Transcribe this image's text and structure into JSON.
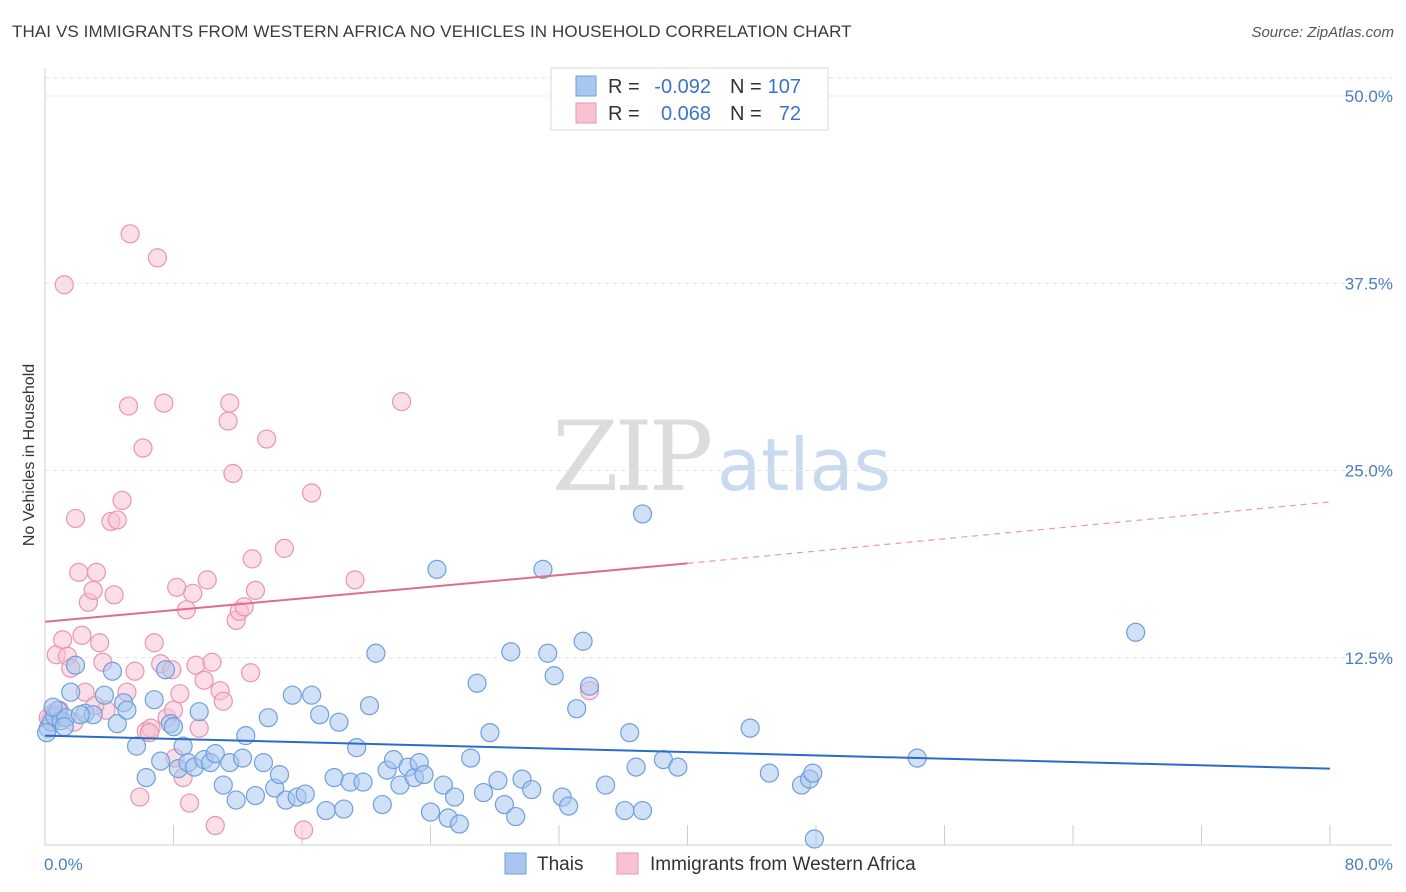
{
  "header": {
    "title": "THAI VS IMMIGRANTS FROM WESTERN AFRICA NO VEHICLES IN HOUSEHOLD CORRELATION CHART",
    "source": "Source: ZipAtlas.com"
  },
  "watermark": {
    "zip": "ZIP",
    "atlas": "atlas"
  },
  "legend": {
    "r_label": "R =",
    "n_label": "N =",
    "entries": [
      {
        "r": "-0.092",
        "n": "107",
        "color": "#a8c4ec"
      },
      {
        "r": "0.068",
        "n": "72",
        "color": "#f5b8cb"
      }
    ]
  },
  "colors": {
    "thais_fill": "#a9c6ef",
    "thais_stroke": "#6f9fdc",
    "thais_line": "#2a6dc9",
    "waf_fill": "#f7c3d3",
    "waf_stroke": "#e995b0",
    "waf_line": "#e06b95",
    "grid": "#e2e2e2",
    "tick_text": "#4a7cc4"
  },
  "chart_data": {
    "type": "scatter",
    "title": "THAI VS IMMIGRANTS FROM WESTERN AFRICA NO VEHICLES IN HOUSEHOLD CORRELATION CHART",
    "xlabel": "",
    "ylabel": "No Vehicles in Household",
    "xlim": [
      0,
      80
    ],
    "ylim": [
      0,
      50
    ],
    "x_tick_labels": [
      "0.0%",
      "80.0%"
    ],
    "y_ticks": [
      12.5,
      25.0,
      37.5,
      50.0
    ],
    "y_tick_labels": [
      "12.5%",
      "25.0%",
      "37.5%",
      "50.0%"
    ],
    "grid": "horizontal dashed",
    "legend_position": "top-center",
    "series": [
      {
        "name": "Thais",
        "trend": {
          "x": [
            0,
            80
          ],
          "y": [
            7.3,
            5.1
          ]
        },
        "points": [
          [
            0.2,
            7.8
          ],
          [
            0.4,
            8.2
          ],
          [
            0.6,
            8.6
          ],
          [
            0.8,
            9.0
          ],
          [
            1.0,
            8.3
          ],
          [
            1.3,
            8.5
          ],
          [
            1.6,
            10.2
          ],
          [
            1.9,
            12.0
          ],
          [
            2.5,
            8.8
          ],
          [
            3.0,
            8.7
          ],
          [
            3.7,
            10.0
          ],
          [
            4.2,
            11.6
          ],
          [
            4.5,
            8.1
          ],
          [
            4.9,
            9.5
          ],
          [
            5.1,
            9.0
          ],
          [
            5.7,
            6.6
          ],
          [
            6.3,
            4.5
          ],
          [
            6.8,
            9.7
          ],
          [
            7.2,
            5.6
          ],
          [
            7.5,
            11.7
          ],
          [
            7.8,
            8.1
          ],
          [
            8.0,
            7.9
          ],
          [
            8.3,
            5.1
          ],
          [
            8.6,
            6.6
          ],
          [
            8.9,
            5.5
          ],
          [
            9.3,
            5.2
          ],
          [
            9.6,
            8.9
          ],
          [
            9.9,
            5.7
          ],
          [
            10.3,
            5.5
          ],
          [
            10.6,
            6.1
          ],
          [
            11.1,
            4.0
          ],
          [
            11.5,
            5.5
          ],
          [
            11.9,
            3.0
          ],
          [
            12.3,
            5.8
          ],
          [
            12.5,
            7.3
          ],
          [
            13.1,
            3.3
          ],
          [
            13.6,
            5.5
          ],
          [
            13.9,
            8.5
          ],
          [
            14.3,
            3.8
          ],
          [
            14.6,
            4.7
          ],
          [
            15.0,
            3.0
          ],
          [
            15.4,
            10.0
          ],
          [
            15.7,
            3.2
          ],
          [
            16.2,
            3.4
          ],
          [
            16.6,
            10.0
          ],
          [
            17.1,
            8.7
          ],
          [
            17.5,
            2.3
          ],
          [
            18.0,
            4.5
          ],
          [
            18.3,
            8.2
          ],
          [
            18.6,
            2.4
          ],
          [
            19.0,
            4.2
          ],
          [
            19.4,
            6.5
          ],
          [
            19.8,
            4.2
          ],
          [
            20.2,
            9.3
          ],
          [
            20.6,
            12.8
          ],
          [
            21.0,
            2.7
          ],
          [
            21.3,
            5.0
          ],
          [
            21.7,
            5.7
          ],
          [
            22.1,
            4.0
          ],
          [
            22.6,
            5.2
          ],
          [
            23.0,
            4.5
          ],
          [
            23.3,
            5.5
          ],
          [
            23.6,
            4.7
          ],
          [
            24.0,
            2.2
          ],
          [
            24.4,
            18.4
          ],
          [
            24.8,
            4.0
          ],
          [
            25.1,
            1.8
          ],
          [
            25.5,
            3.2
          ],
          [
            25.8,
            1.4
          ],
          [
            26.5,
            5.8
          ],
          [
            26.9,
            10.8
          ],
          [
            27.3,
            3.5
          ],
          [
            27.7,
            7.5
          ],
          [
            28.2,
            4.3
          ],
          [
            28.6,
            2.7
          ],
          [
            29.0,
            12.9
          ],
          [
            29.3,
            1.9
          ],
          [
            29.7,
            4.4
          ],
          [
            30.3,
            3.7
          ],
          [
            31.0,
            18.4
          ],
          [
            31.3,
            12.8
          ],
          [
            31.7,
            11.3
          ],
          [
            32.2,
            3.2
          ],
          [
            32.6,
            2.6
          ],
          [
            33.1,
            9.1
          ],
          [
            33.5,
            13.6
          ],
          [
            33.9,
            10.6
          ],
          [
            34.9,
            4.0
          ],
          [
            36.1,
            2.3
          ],
          [
            36.4,
            7.5
          ],
          [
            36.8,
            5.2
          ],
          [
            37.2,
            2.3
          ],
          [
            37.2,
            22.1
          ],
          [
            38.5,
            5.7
          ],
          [
            39.4,
            5.2
          ],
          [
            43.9,
            7.8
          ],
          [
            45.1,
            4.8
          ],
          [
            47.1,
            4.0
          ],
          [
            47.6,
            4.4
          ],
          [
            47.8,
            4.8
          ],
          [
            47.9,
            0.4
          ],
          [
            54.3,
            5.8
          ],
          [
            67.9,
            14.2
          ],
          [
            0.1,
            7.5
          ],
          [
            0.5,
            9.2
          ],
          [
            1.2,
            7.9
          ],
          [
            2.2,
            8.7
          ]
        ]
      },
      {
        "name": "Immigrants from Western Africa",
        "trend": {
          "x": [
            0,
            40,
            80
          ],
          "y": [
            14.9,
            18.8,
            22.9
          ]
        },
        "points": [
          [
            0.3,
            8.3
          ],
          [
            0.5,
            8.8
          ],
          [
            0.7,
            12.7
          ],
          [
            0.9,
            9.0
          ],
          [
            1.1,
            13.7
          ],
          [
            1.2,
            37.4
          ],
          [
            1.4,
            12.6
          ],
          [
            1.6,
            11.8
          ],
          [
            1.8,
            8.2
          ],
          [
            1.9,
            21.8
          ],
          [
            2.1,
            18.2
          ],
          [
            2.3,
            14.0
          ],
          [
            2.5,
            10.2
          ],
          [
            2.7,
            16.2
          ],
          [
            3.0,
            17.0
          ],
          [
            3.2,
            18.2
          ],
          [
            3.4,
            13.5
          ],
          [
            3.6,
            12.2
          ],
          [
            3.8,
            9.0
          ],
          [
            4.1,
            21.6
          ],
          [
            4.3,
            16.7
          ],
          [
            4.5,
            21.7
          ],
          [
            4.8,
            23.0
          ],
          [
            5.1,
            10.2
          ],
          [
            5.2,
            29.3
          ],
          [
            5.3,
            40.8
          ],
          [
            5.6,
            11.6
          ],
          [
            5.9,
            3.2
          ],
          [
            6.1,
            26.5
          ],
          [
            6.3,
            7.6
          ],
          [
            6.6,
            7.8
          ],
          [
            6.8,
            13.5
          ],
          [
            7.0,
            39.2
          ],
          [
            7.2,
            12.1
          ],
          [
            7.4,
            29.5
          ],
          [
            7.6,
            8.5
          ],
          [
            7.9,
            11.7
          ],
          [
            8.0,
            9.0
          ],
          [
            8.2,
            17.2
          ],
          [
            8.4,
            10.1
          ],
          [
            8.6,
            4.5
          ],
          [
            8.8,
            15.7
          ],
          [
            9.0,
            2.8
          ],
          [
            9.2,
            16.8
          ],
          [
            9.4,
            12.0
          ],
          [
            9.6,
            7.8
          ],
          [
            9.9,
            11.0
          ],
          [
            10.1,
            17.7
          ],
          [
            10.4,
            12.2
          ],
          [
            10.6,
            1.3
          ],
          [
            10.9,
            10.3
          ],
          [
            11.1,
            9.6
          ],
          [
            11.4,
            28.3
          ],
          [
            11.5,
            29.5
          ],
          [
            11.7,
            24.8
          ],
          [
            11.9,
            15.0
          ],
          [
            12.1,
            15.6
          ],
          [
            12.4,
            15.9
          ],
          [
            12.8,
            11.5
          ],
          [
            12.9,
            19.1
          ],
          [
            13.1,
            17.0
          ],
          [
            13.8,
            27.1
          ],
          [
            14.9,
            19.8
          ],
          [
            16.1,
            1.0
          ],
          [
            16.6,
            23.5
          ],
          [
            19.3,
            17.7
          ],
          [
            22.2,
            29.6
          ],
          [
            33.9,
            10.3
          ],
          [
            0.2,
            8.5
          ],
          [
            6.5,
            7.5
          ],
          [
            8.1,
            5.8
          ],
          [
            3.1,
            9.3
          ]
        ]
      }
    ]
  },
  "bottom_legend": {
    "items": [
      {
        "label": "Thais",
        "color": "#a9c6ef"
      },
      {
        "label": "Immigrants from Western Africa",
        "color": "#f7c3d3"
      }
    ]
  }
}
